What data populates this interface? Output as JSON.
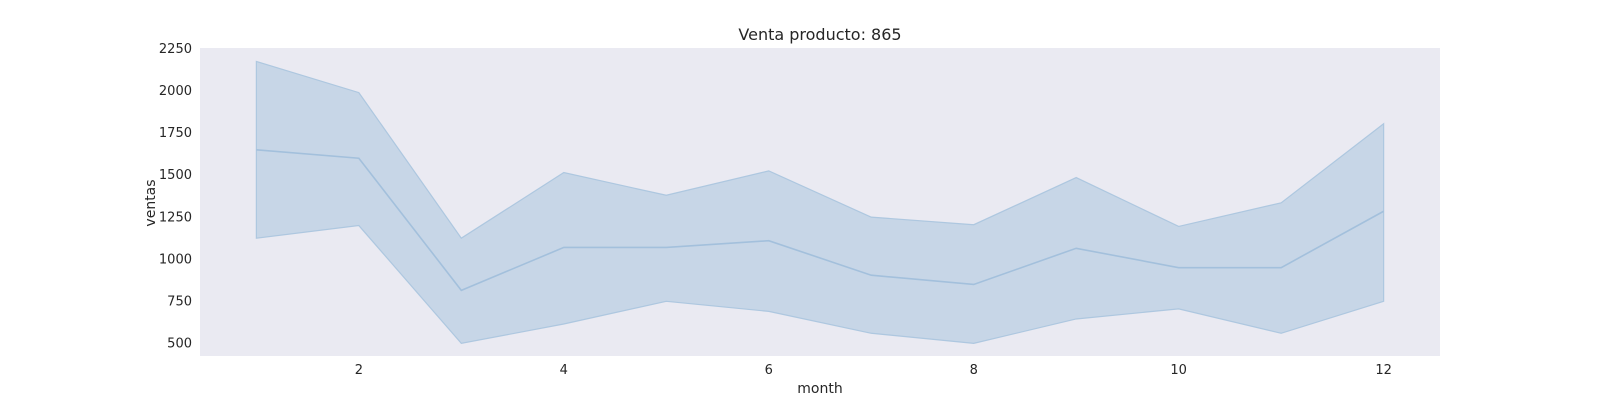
{
  "chart_data": {
    "type": "line",
    "title": "Venta producto: 865",
    "xlabel": "month",
    "ylabel": "ventas",
    "xlim": [
      0.45,
      12.55
    ],
    "ylim": [
      420,
      2250
    ],
    "x_ticks": [
      2,
      4,
      6,
      8,
      10,
      12
    ],
    "y_ticks": [
      500,
      750,
      1000,
      1250,
      1500,
      1750,
      2000,
      2250
    ],
    "grid": false,
    "legend": "none",
    "colors": {
      "background": "#eaeaf2",
      "band": "#a9c4de",
      "line": "#a3c0dc"
    },
    "series": [
      {
        "x": [
          1,
          2,
          3,
          4,
          5,
          6,
          7,
          8,
          9,
          10,
          11,
          12
        ],
        "values": [
          1645,
          1595,
          810,
          1065,
          1065,
          1105,
          900,
          845,
          1060,
          945,
          945,
          1280
        ],
        "upper": [
          2170,
          1985,
          1120,
          1510,
          1375,
          1520,
          1245,
          1200,
          1480,
          1190,
          1330,
          1800
        ],
        "lower": [
          1120,
          1195,
          495,
          610,
          745,
          685,
          555,
          495,
          640,
          700,
          555,
          745
        ]
      }
    ]
  }
}
